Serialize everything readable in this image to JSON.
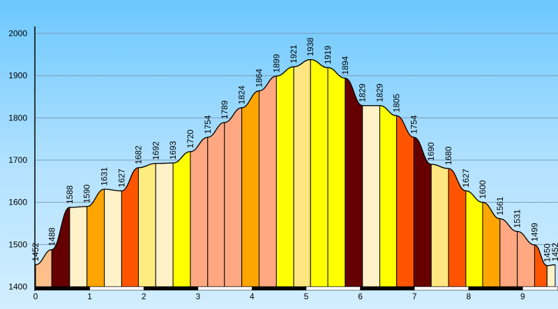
{
  "chart_data": {
    "type": "area",
    "title": "",
    "xlabel": "",
    "ylabel": "",
    "xlim": [
      0,
      9.65
    ],
    "ylim": [
      1400,
      2000
    ],
    "x_ticks": [
      0,
      1,
      2,
      3,
      4,
      5,
      6,
      7,
      8,
      9
    ],
    "x_tick_labels": [
      "0",
      "1",
      "2",
      "3",
      "4",
      "5",
      "6",
      "7",
      "8",
      "9"
    ],
    "y_ticks": [
      1400,
      1500,
      1600,
      1700,
      1800,
      1900,
      2000
    ],
    "y_tick_labels": [
      "1400",
      "1500",
      "1600",
      "1700",
      "1800",
      "1900",
      "2000"
    ],
    "grid": true,
    "points": [
      {
        "x": 0.0,
        "elevation": 1452
      },
      {
        "x": 0.3,
        "elevation": 1488
      },
      {
        "x": 0.63,
        "elevation": 1588
      },
      {
        "x": 0.95,
        "elevation": 1590
      },
      {
        "x": 1.27,
        "elevation": 1631
      },
      {
        "x": 1.59,
        "elevation": 1627
      },
      {
        "x": 1.9,
        "elevation": 1682
      },
      {
        "x": 2.22,
        "elevation": 1692
      },
      {
        "x": 2.54,
        "elevation": 1693
      },
      {
        "x": 2.86,
        "elevation": 1720
      },
      {
        "x": 3.18,
        "elevation": 1754
      },
      {
        "x": 3.49,
        "elevation": 1789
      },
      {
        "x": 3.81,
        "elevation": 1824
      },
      {
        "x": 4.13,
        "elevation": 1864
      },
      {
        "x": 4.45,
        "elevation": 1899
      },
      {
        "x": 4.77,
        "elevation": 1921
      },
      {
        "x": 5.08,
        "elevation": 1938
      },
      {
        "x": 5.4,
        "elevation": 1919
      },
      {
        "x": 5.72,
        "elevation": 1894
      },
      {
        "x": 6.04,
        "elevation": 1829
      },
      {
        "x": 6.36,
        "elevation": 1829
      },
      {
        "x": 6.67,
        "elevation": 1805
      },
      {
        "x": 6.99,
        "elevation": 1754
      },
      {
        "x": 7.31,
        "elevation": 1690
      },
      {
        "x": 7.63,
        "elevation": 1680
      },
      {
        "x": 7.95,
        "elevation": 1627
      },
      {
        "x": 8.26,
        "elevation": 1600
      },
      {
        "x": 8.58,
        "elevation": 1561
      },
      {
        "x": 8.9,
        "elevation": 1531
      },
      {
        "x": 9.22,
        "elevation": 1499
      },
      {
        "x": 9.45,
        "elevation": 1450
      },
      {
        "x": 9.6,
        "elevation": 1452
      }
    ],
    "band_colors": [
      "#ffbf8a",
      "#660000",
      "#fff2c8",
      "#ffa500",
      "#fff2c8",
      "#ff5500",
      "#ffec80",
      "#fff2c8",
      "#ffff00",
      "#ffa882",
      "#ffa882",
      "#ffa882",
      "#ffa500",
      "#ffa882",
      "#ffff00",
      "#ffe680",
      "#ffff00",
      "#ffff00",
      "#660000",
      "#fff2c8",
      "#ffff00",
      "#ff5500",
      "#660000",
      "#ffe680",
      "#ff5500",
      "#ffff00",
      "#ffa500",
      "#ffa882",
      "#ffa882",
      "#ff5500",
      "#fff2c8"
    ],
    "colors": {
      "outline": "#000000",
      "gridline": "#7a9cb3",
      "scale_dark": "#000000",
      "scale_light": "#ffffff"
    }
  }
}
